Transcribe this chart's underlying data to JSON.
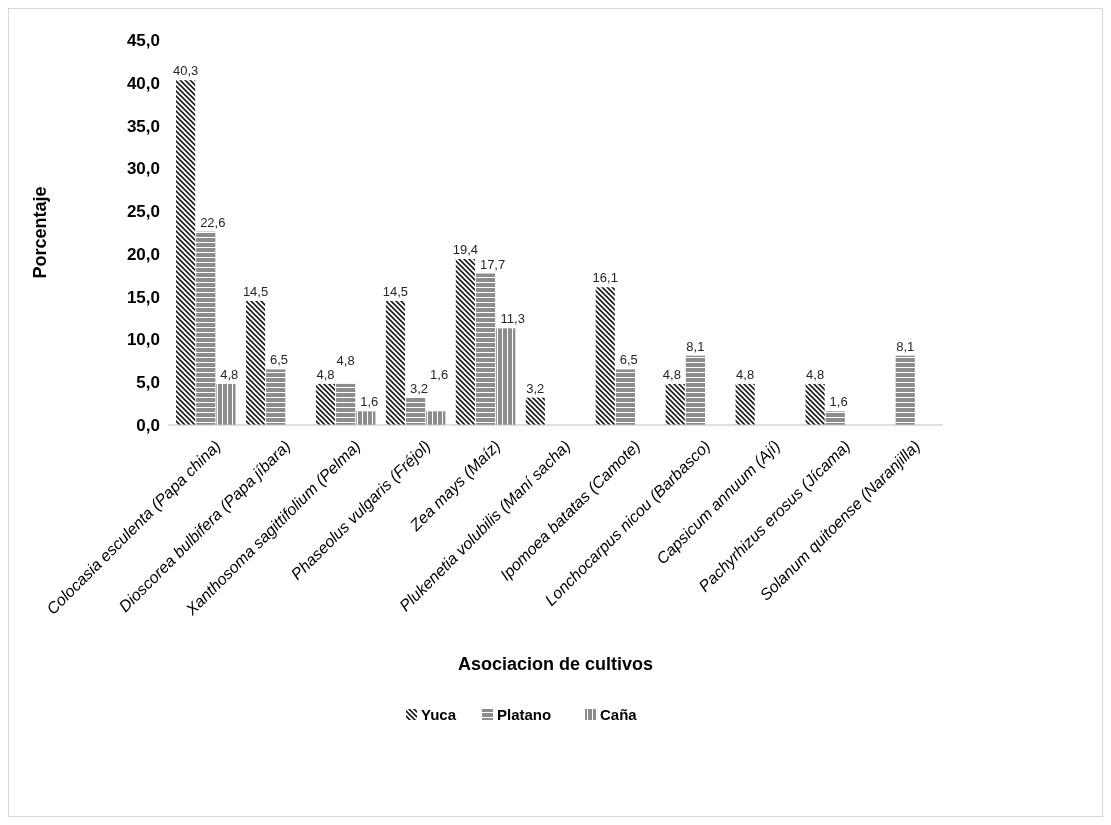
{
  "chart_data": {
    "type": "bar",
    "xlabel": "Asociacion de cultivos",
    "ylabel": "Porcentaje",
    "categories": [
      "Colocasia esculenta (Papa china)",
      "Dioscorea bulbifera (Papa jíbara)",
      "Xanthosoma sagittifolium (Pelma)",
      "Phaseolus vulgaris (Fréjol)",
      "Zea mays (Maíz)",
      "Plukenetia volubilis (Maní sacha)",
      "Ipomoea batatas (Camote)",
      "Lonchocarpus nicou (Barbasco)",
      "Capsicum annuum (Ají)",
      "Pachyrhizus erosus (Jícama)",
      "Solanum quitoense (Naranjilla)"
    ],
    "series": [
      {
        "name": "Yuca",
        "color": "#1a1a1a",
        "values": [
          40.3,
          14.5,
          4.8,
          14.5,
          19.4,
          3.2,
          16.1,
          4.8,
          4.8,
          4.8,
          null
        ],
        "value_labels": [
          "40,3",
          "14,5",
          "4,8",
          "14,5",
          "19,4",
          "3,2",
          "16,1",
          "4,8",
          "4,8",
          "4,8",
          null
        ]
      },
      {
        "name": "Platano",
        "color": "#1a1a1a",
        "values": [
          22.6,
          6.5,
          4.8,
          3.2,
          17.7,
          null,
          6.5,
          8.1,
          null,
          1.6,
          8.1
        ],
        "value_labels": [
          "22,6",
          "6,5",
          "4,8",
          "3,2",
          "17,7",
          null,
          "6,5",
          "8,1",
          null,
          "1,6",
          "8,1"
        ]
      },
      {
        "name": "Caña",
        "color": "#1a1a1a",
        "values": [
          4.8,
          null,
          1.6,
          1.6,
          11.3,
          null,
          null,
          null,
          null,
          null,
          null
        ],
        "value_labels": [
          "4,8",
          null,
          "1,6",
          "1,6",
          "11,3",
          null,
          null,
          null,
          null,
          null,
          null
        ]
      }
    ],
    "ylim": [
      0,
      45
    ],
    "yticks": [
      {
        "value": 0,
        "label": "0,0"
      },
      {
        "value": 5,
        "label": "5,0"
      },
      {
        "value": 10,
        "label": "10,0"
      },
      {
        "value": 15,
        "label": "15,0"
      },
      {
        "value": 20,
        "label": "20,0"
      },
      {
        "value": 25,
        "label": "25,0"
      },
      {
        "value": 30,
        "label": "30,0"
      },
      {
        "value": 35,
        "label": "35,0"
      },
      {
        "value": 40,
        "label": "40,0"
      },
      {
        "value": 45,
        "label": "45,0"
      }
    ],
    "grid": false,
    "legend": "bottom"
  }
}
